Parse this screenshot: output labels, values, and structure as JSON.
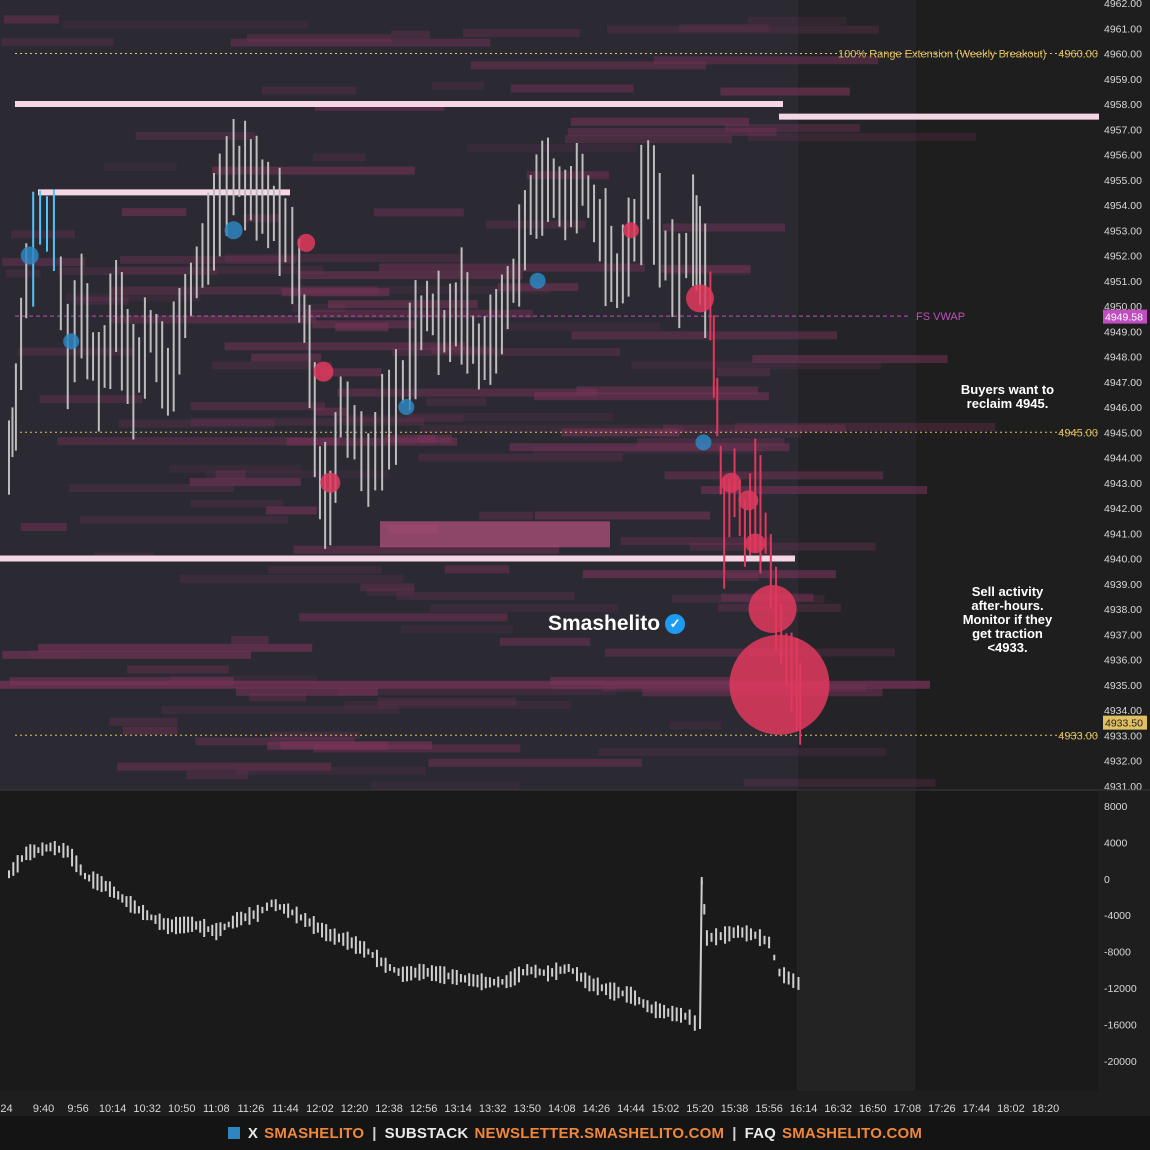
{
  "chart_data": [
    {
      "type": "candlestick-orderflow",
      "price_axis": {
        "ticks": [
          "4931.00",
          "4932.00",
          "4933.00",
          "4934.00",
          "4935.00",
          "4936.00",
          "4937.00",
          "4938.00",
          "4939.00",
          "4940.00",
          "4941.00",
          "4942.00",
          "4943.00",
          "4944.00",
          "4945.00",
          "4946.00",
          "4947.00",
          "4948.00",
          "4949.00",
          "4950.00",
          "4951.00",
          "4952.00",
          "4953.00",
          "4954.00",
          "4955.00",
          "4956.00",
          "4957.00",
          "4958.00",
          "4959.00",
          "4960.00",
          "4961.00",
          "4962.00"
        ],
        "range": [
          4931,
          4962
        ],
        "current_price": "4949.58",
        "last_price": "4933.50"
      },
      "time_axis": {
        "ticks": [
          ":24",
          "9:40",
          "9:56",
          "10:14",
          "10:32",
          "10:50",
          "11:08",
          "11:26",
          "11:44",
          "12:02",
          "12:20",
          "12:38",
          "12:56",
          "13:14",
          "13:32",
          "13:50",
          "14:08",
          "14:26",
          "14:44",
          "15:02",
          "15:20",
          "15:38",
          "15:56",
          "16:14",
          "16:32",
          "16:50",
          "17:08",
          "17:26",
          "17:44",
          "18:02",
          "18:20"
        ]
      },
      "levels": [
        {
          "price": 4960.0,
          "label": "100% Range Extension (Weekly Breakout)",
          "value_label": "4960.00",
          "color": "#e0c060",
          "style": "dotted"
        },
        {
          "price": 4945.0,
          "label": "",
          "value_label": "4945.00",
          "color": "#e0c060",
          "style": "dotted"
        },
        {
          "price": 4933.0,
          "label": "",
          "value_label": "4933.00",
          "color": "#e0c060",
          "style": "dotted"
        },
        {
          "price": 4949.6,
          "label": "FS VWAP",
          "value_label": "",
          "color": "#c04ec0",
          "style": "dashed"
        }
      ],
      "price_path": [
        {
          "t": 0.0,
          "p": 4944
        },
        {
          "t": 0.2,
          "p": 4946
        },
        {
          "t": 0.5,
          "p": 4951
        },
        {
          "t": 0.9,
          "p": 4953.5
        },
        {
          "t": 1.3,
          "p": 4953
        },
        {
          "t": 1.7,
          "p": 4948
        },
        {
          "t": 2.1,
          "p": 4950
        },
        {
          "t": 2.6,
          "p": 4947
        },
        {
          "t": 3.1,
          "p": 4950
        },
        {
          "t": 3.6,
          "p": 4947
        },
        {
          "t": 4.1,
          "p": 4949
        },
        {
          "t": 4.6,
          "p": 4947
        },
        {
          "t": 5.1,
          "p": 4950
        },
        {
          "t": 5.6,
          "p": 4952
        },
        {
          "t": 6.1,
          "p": 4954
        },
        {
          "t": 6.5,
          "p": 4955.5
        },
        {
          "t": 7.0,
          "p": 4955
        },
        {
          "t": 7.5,
          "p": 4954
        },
        {
          "t": 8.0,
          "p": 4953
        },
        {
          "t": 8.4,
          "p": 4951
        },
        {
          "t": 8.7,
          "p": 4948
        },
        {
          "t": 9.0,
          "p": 4943
        },
        {
          "t": 9.3,
          "p": 4942
        },
        {
          "t": 9.6,
          "p": 4946
        },
        {
          "t": 10.0,
          "p": 4945
        },
        {
          "t": 10.4,
          "p": 4943.5
        },
        {
          "t": 10.8,
          "p": 4945
        },
        {
          "t": 11.2,
          "p": 4946
        },
        {
          "t": 11.6,
          "p": 4948
        },
        {
          "t": 12.1,
          "p": 4950
        },
        {
          "t": 12.6,
          "p": 4949
        },
        {
          "t": 13.1,
          "p": 4950
        },
        {
          "t": 13.6,
          "p": 4948
        },
        {
          "t": 14.1,
          "p": 4949
        },
        {
          "t": 14.6,
          "p": 4951
        },
        {
          "t": 15.1,
          "p": 4954
        },
        {
          "t": 15.6,
          "p": 4955
        },
        {
          "t": 16.1,
          "p": 4954
        },
        {
          "t": 16.6,
          "p": 4955
        },
        {
          "t": 17.1,
          "p": 4953
        },
        {
          "t": 17.6,
          "p": 4951
        },
        {
          "t": 18.1,
          "p": 4953
        },
        {
          "t": 18.5,
          "p": 4955
        },
        {
          "t": 19.0,
          "p": 4952
        },
        {
          "t": 19.4,
          "p": 4951
        },
        {
          "t": 19.8,
          "p": 4953
        },
        {
          "t": 20.0,
          "p": 4952
        },
        {
          "t": 20.3,
          "p": 4950
        },
        {
          "t": 20.5,
          "p": 4946
        },
        {
          "t": 20.7,
          "p": 4941
        },
        {
          "t": 21.0,
          "p": 4943
        },
        {
          "t": 21.3,
          "p": 4941
        },
        {
          "t": 21.6,
          "p": 4942.5
        },
        {
          "t": 21.9,
          "p": 4941
        },
        {
          "t": 22.2,
          "p": 4938
        },
        {
          "t": 22.5,
          "p": 4936
        },
        {
          "t": 22.8,
          "p": 4935
        },
        {
          "t": 23.0,
          "p": 4933.5
        }
      ],
      "bubbles": [
        {
          "t": 20.0,
          "p": 4950.3,
          "size": 14,
          "side": "sell"
        },
        {
          "t": 20.9,
          "p": 4943.0,
          "size": 10,
          "side": "sell"
        },
        {
          "t": 21.4,
          "p": 4942.3,
          "size": 10,
          "side": "sell"
        },
        {
          "t": 21.6,
          "p": 4940.6,
          "size": 10,
          "side": "sell"
        },
        {
          "t": 22.1,
          "p": 4938.0,
          "size": 24,
          "side": "sell"
        },
        {
          "t": 22.3,
          "p": 4935.0,
          "size": 50,
          "side": "sell"
        },
        {
          "t": 20.1,
          "p": 4944.6,
          "size": 8,
          "side": "buy"
        },
        {
          "t": 11.5,
          "p": 4946.0,
          "size": 8,
          "side": "buy"
        },
        {
          "t": 15.3,
          "p": 4951.0,
          "size": 8,
          "side": "buy"
        },
        {
          "t": 6.5,
          "p": 4953.0,
          "size": 9,
          "side": "buy"
        },
        {
          "t": 0.6,
          "p": 4952.0,
          "size": 9,
          "side": "buy"
        },
        {
          "t": 1.8,
          "p": 4948.6,
          "size": 8,
          "side": "buy"
        },
        {
          "t": 8.6,
          "p": 4952.5,
          "size": 9,
          "side": "sell"
        },
        {
          "t": 9.3,
          "p": 4943.0,
          "size": 10,
          "side": "sell"
        },
        {
          "t": 9.1,
          "p": 4947.4,
          "size": 10,
          "side": "sell"
        },
        {
          "t": 18.0,
          "p": 4953.0,
          "size": 8,
          "side": "sell"
        }
      ],
      "delta_axis": {
        "ticks": [
          "8000",
          "4000",
          "0",
          "-4000",
          "-8000",
          "-12000",
          "-16000",
          "-20000"
        ],
        "range": [
          -22000,
          9500
        ]
      },
      "delta_path": [
        {
          "t": 0.0,
          "v": 500
        },
        {
          "t": 0.5,
          "v": 2800
        },
        {
          "t": 1.2,
          "v": 3500
        },
        {
          "t": 1.7,
          "v": 3000
        },
        {
          "t": 2.2,
          "v": 300
        },
        {
          "t": 2.8,
          "v": -800
        },
        {
          "t": 3.4,
          "v": -2500
        },
        {
          "t": 4.0,
          "v": -4000
        },
        {
          "t": 4.6,
          "v": -5200
        },
        {
          "t": 5.3,
          "v": -5000
        },
        {
          "t": 6.0,
          "v": -5800
        },
        {
          "t": 6.6,
          "v": -4500
        },
        {
          "t": 7.2,
          "v": -3800
        },
        {
          "t": 7.6,
          "v": -2700
        },
        {
          "t": 8.2,
          "v": -3700
        },
        {
          "t": 8.7,
          "v": -4800
        },
        {
          "t": 9.3,
          "v": -6200
        },
        {
          "t": 9.8,
          "v": -6800
        },
        {
          "t": 10.4,
          "v": -8000
        },
        {
          "t": 10.9,
          "v": -9500
        },
        {
          "t": 11.4,
          "v": -10500
        },
        {
          "t": 12.0,
          "v": -10200
        },
        {
          "t": 12.6,
          "v": -10600
        },
        {
          "t": 13.2,
          "v": -11000
        },
        {
          "t": 13.8,
          "v": -11400
        },
        {
          "t": 14.4,
          "v": -11300
        },
        {
          "t": 15.0,
          "v": -10000
        },
        {
          "t": 15.6,
          "v": -10400
        },
        {
          "t": 16.2,
          "v": -9800
        },
        {
          "t": 16.8,
          "v": -11500
        },
        {
          "t": 17.4,
          "v": -12300
        },
        {
          "t": 18.0,
          "v": -12800
        },
        {
          "t": 18.6,
          "v": -14300
        },
        {
          "t": 19.2,
          "v": -14800
        },
        {
          "t": 19.7,
          "v": -15200
        },
        {
          "t": 20.0,
          "v": -16500
        },
        {
          "t": 20.05,
          "v": -200
        },
        {
          "t": 20.2,
          "v": -6500
        },
        {
          "t": 20.6,
          "v": -6300
        },
        {
          "t": 21.1,
          "v": -5800
        },
        {
          "t": 21.6,
          "v": -6200
        },
        {
          "t": 22.0,
          "v": -7000
        },
        {
          "t": 22.3,
          "v": -10300
        },
        {
          "t": 22.7,
          "v": -11200
        },
        {
          "t": 23.0,
          "v": -11800
        }
      ]
    }
  ],
  "annotations": {
    "brand": "Smashelito",
    "badge_icon": "verified-check-icon",
    "note_top": [
      "Buyers want to",
      "reclaim 4945."
    ],
    "note_bottom": [
      "Sell activity",
      "after-hours.",
      "Monitor if they",
      "get traction",
      "<4933."
    ]
  },
  "footer": {
    "x_label": "X",
    "x_handle": "SMASHELITO",
    "substack_label": "SUBSTACK",
    "substack_url": "NEWSLETTER.SMASHELITO.COM",
    "faq_label": "FAQ",
    "faq_url": "SMASHELITO.COM",
    "sep": "|"
  },
  "colors": {
    "background": "#1e1e1e",
    "axis_text": "#d8d8d8",
    "level": "#e0c060",
    "vwap": "#c04ec0",
    "sell": "#e0385e",
    "buy": "#2e86c1",
    "candle": "#bdbdbd",
    "heat": "#7a3358",
    "accent": "#f0873a"
  }
}
